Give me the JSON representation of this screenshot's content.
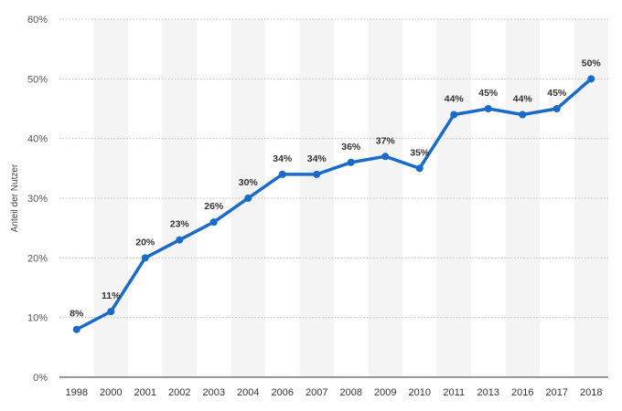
{
  "chart_data": {
    "type": "line",
    "categories": [
      "1998",
      "2000",
      "2001",
      "2002",
      "2003",
      "2004",
      "2006",
      "2007",
      "2008",
      "2009",
      "2010",
      "2011",
      "2013",
      "2016",
      "2017",
      "2018"
    ],
    "values": [
      8,
      11,
      20,
      23,
      26,
      30,
      34,
      34,
      36,
      37,
      35,
      44,
      45,
      44,
      45,
      50
    ],
    "data_labels": [
      "8%",
      "11%",
      "20%",
      "23%",
      "26%",
      "30%",
      "34%",
      "34%",
      "36%",
      "37%",
      "35%",
      "44%",
      "45%",
      "44%",
      "45%",
      "50%"
    ],
    "ylabel": "Anteil der Nutzer",
    "xlabel": "",
    "title": "",
    "ylim": [
      0,
      60
    ],
    "yticks": [
      0,
      10,
      20,
      30,
      40,
      50,
      60
    ],
    "ytick_labels": [
      "0%",
      "10%",
      "20%",
      "30%",
      "40%",
      "50%",
      "60%"
    ],
    "grid": "horizontal dotted",
    "alternating_column_shading": true,
    "colors": {
      "line": "#1a6ac9",
      "column_band": "#f4f4f4",
      "grid": "#bfbfbf"
    }
  }
}
